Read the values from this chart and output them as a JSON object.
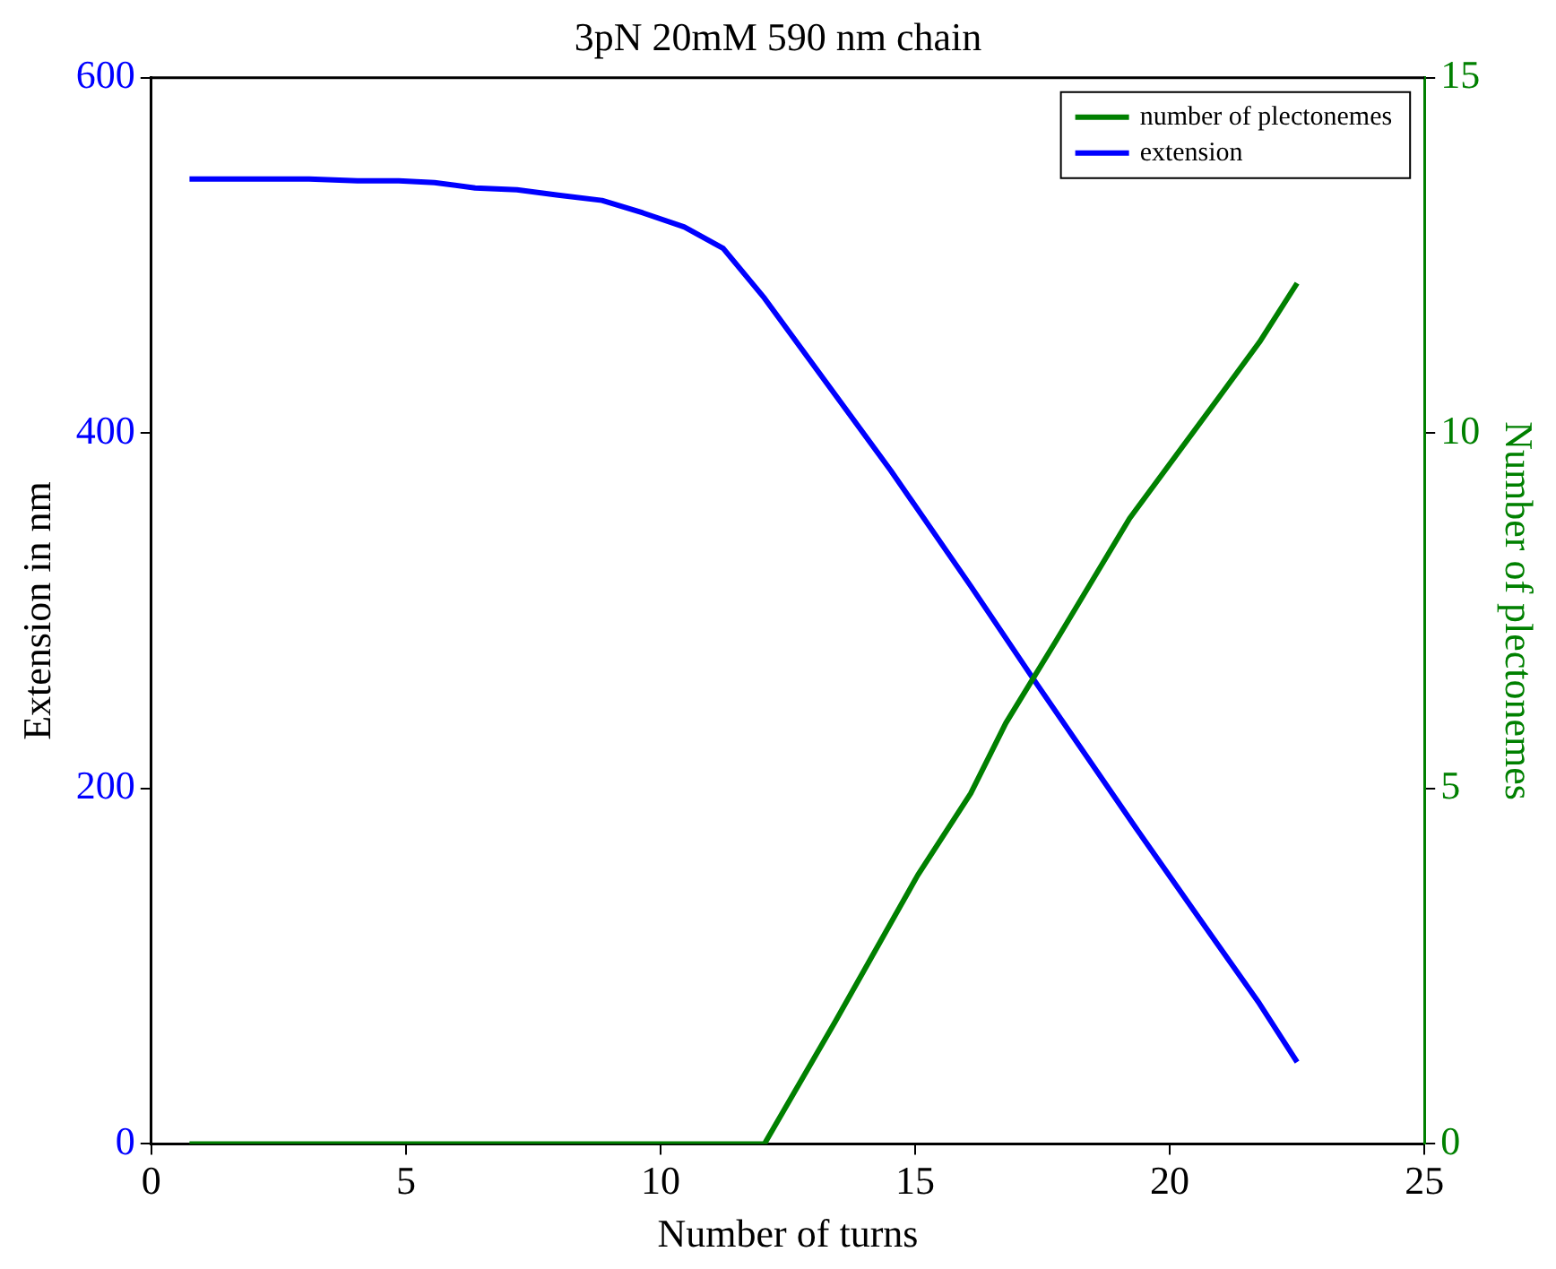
{
  "chart_data": {
    "type": "line",
    "title": "3pN 20mM 590 nm chain",
    "xlabel": "Number of turns",
    "ylabel": "Extension in nm",
    "y2label": "Number of plectonemes",
    "xlim": [
      0,
      25
    ],
    "xticks": [
      0,
      5,
      10,
      15,
      20,
      25
    ],
    "ylim": [
      0,
      600
    ],
    "yticks": [
      0,
      200,
      400,
      600
    ],
    "y2lim": [
      0,
      15
    ],
    "y2ticks": [
      0,
      5,
      10,
      15
    ],
    "legend": "top right",
    "line_style": "solid",
    "marker": "none",
    "series": [
      {
        "name": "number of plectonemes",
        "color": "#008000",
        "axis": "y2",
        "x": [
          0.75,
          3.1,
          5.6,
          8.0,
          10.5,
          12.04,
          13.43,
          15.05,
          16.09,
          16.78,
          17.76,
          19.21,
          20.95,
          21.76,
          22.5
        ],
        "values": [
          0,
          0,
          0,
          0,
          0,
          0,
          1.72,
          3.78,
          4.93,
          5.92,
          7.07,
          8.8,
          10.49,
          11.28,
          12.11
        ]
      },
      {
        "name": "extension",
        "color": "#0000ff",
        "x": [
          0.75,
          3.1,
          4.05,
          4.86,
          5.56,
          6.36,
          7.18,
          7.99,
          8.85,
          9.65,
          10.47,
          11.23,
          12.04,
          14.52,
          16.09,
          17.36,
          19.33,
          20.7,
          21.76,
          22.5
        ],
        "values": [
          543,
          543,
          542,
          542,
          541,
          538,
          537,
          534,
          531,
          524,
          516,
          504,
          476,
          379,
          314,
          260,
          178,
          122,
          79,
          46
        ]
      }
    ]
  }
}
